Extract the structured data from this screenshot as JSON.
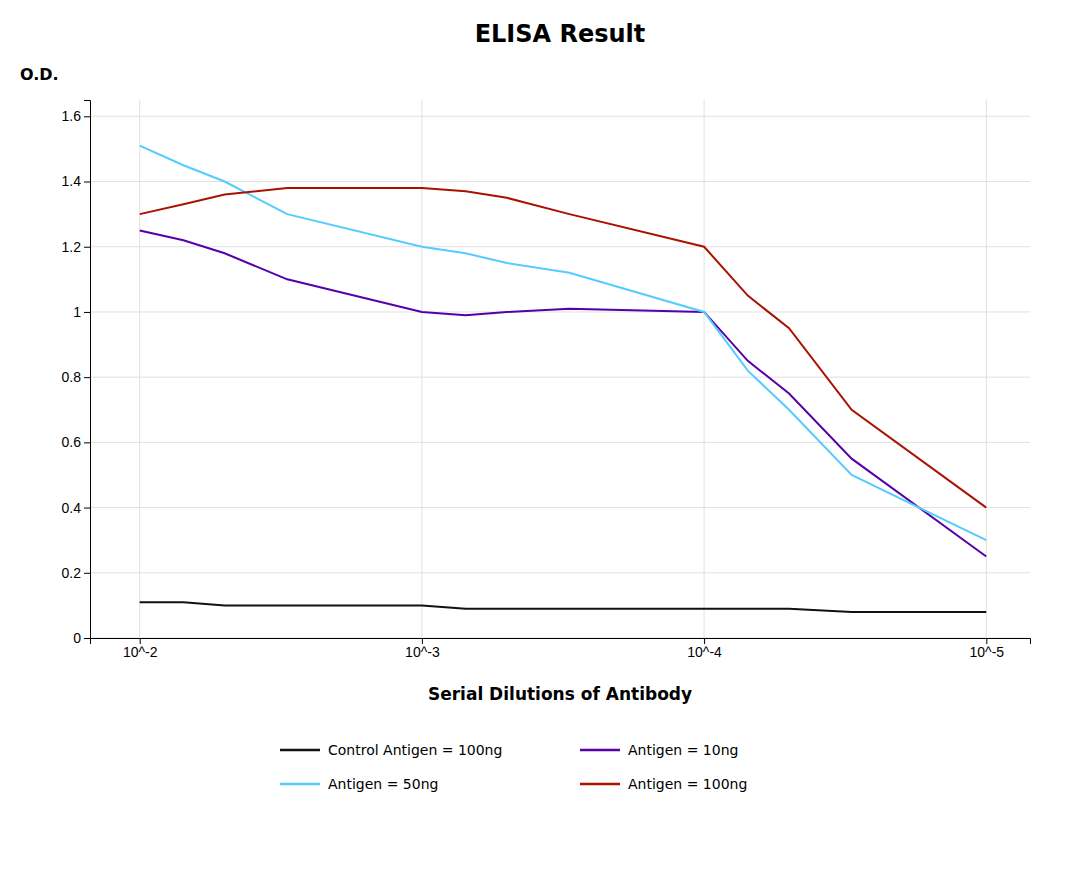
{
  "chart_data": {
    "type": "line",
    "title": "ELISA Result",
    "ylabel": "O.D.",
    "xlabel": "Serial Dilutions of Antibody",
    "log": "x",
    "grid": true,
    "legend": "bottom",
    "xlim": [
      0.015,
      7e-06
    ],
    "xticks": [
      {
        "value": 0.01,
        "label": "10^-2"
      },
      {
        "value": 0.001,
        "label": "10^-3"
      },
      {
        "value": 0.0001,
        "label": "10^-4"
      },
      {
        "value": 1e-05,
        "label": "10^-5"
      }
    ],
    "ylim": [
      0,
      1.65
    ],
    "yticks": [
      0,
      0.2,
      0.4,
      0.6,
      0.8,
      1.0,
      1.2,
      1.4,
      1.6
    ],
    "x": [
      0.01,
      0.007,
      0.005,
      0.003,
      0.001,
      0.0007,
      0.0005,
      0.0003,
      0.0001,
      7e-05,
      5e-05,
      3e-05,
      1e-05
    ],
    "series": [
      {
        "name": "Control Antigen = 100ng",
        "color": "#111111",
        "values": [
          0.11,
          0.11,
          0.1,
          0.1,
          0.1,
          0.09,
          0.09,
          0.09,
          0.09,
          0.09,
          0.09,
          0.08,
          0.08
        ]
      },
      {
        "name": "Antigen = 10ng",
        "color": "#5500aa",
        "values": [
          1.25,
          1.22,
          1.18,
          1.1,
          1.0,
          0.99,
          1.0,
          1.01,
          1.0,
          0.85,
          0.75,
          0.55,
          0.25
        ]
      },
      {
        "name": "Antigen = 50ng",
        "color": "#55ccff",
        "values": [
          1.51,
          1.45,
          1.4,
          1.3,
          1.2,
          1.18,
          1.15,
          1.12,
          1.0,
          0.82,
          0.7,
          0.5,
          0.3
        ]
      },
      {
        "name": "Antigen = 100ng",
        "color": "#aa1100",
        "values": [
          1.3,
          1.33,
          1.36,
          1.38,
          1.38,
          1.37,
          1.35,
          1.3,
          1.2,
          1.05,
          0.95,
          0.7,
          0.4
        ]
      }
    ]
  }
}
